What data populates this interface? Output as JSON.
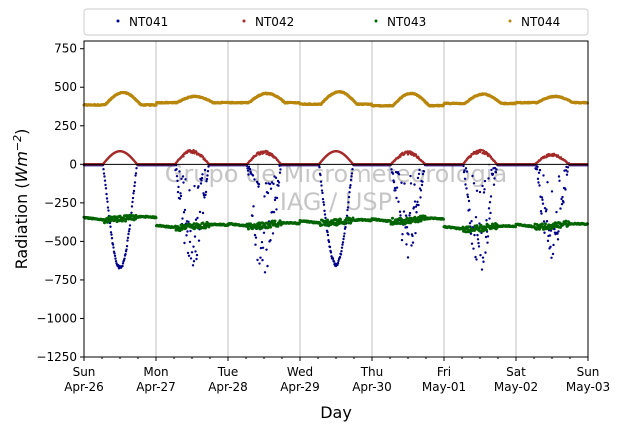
{
  "chart_data": {
    "type": "scatter",
    "title": "",
    "xlabel": "Day",
    "ylabel": "Radiation (Wm^-2)",
    "ylabel_parts": {
      "main": "Radiation (",
      "var": "Wm",
      "exp": "−2",
      "close": ")"
    },
    "ylim": [
      -1250,
      800
    ],
    "xlim_days": [
      0,
      7
    ],
    "yticks": [
      {
        "value": 750,
        "label": "750"
      },
      {
        "value": 500,
        "label": "500"
      },
      {
        "value": 250,
        "label": "250"
      },
      {
        "value": 0,
        "label": "0"
      },
      {
        "value": -250,
        "label": "−250"
      },
      {
        "value": -500,
        "label": "−500"
      },
      {
        "value": -750,
        "label": "−750"
      },
      {
        "value": -1000,
        "label": "−1000"
      },
      {
        "value": -1250,
        "label": "−1250"
      }
    ],
    "xticks": [
      {
        "day": 0,
        "line1": "Sun",
        "line2": "Apr-26"
      },
      {
        "day": 1,
        "line1": "Mon",
        "line2": "Apr-27"
      },
      {
        "day": 2,
        "line1": "Tue",
        "line2": "Apr-28"
      },
      {
        "day": 3,
        "line1": "Wed",
        "line2": "Apr-29"
      },
      {
        "day": 4,
        "line1": "Thu",
        "line2": "Apr-30"
      },
      {
        "day": 5,
        "line1": "Fri",
        "line2": "May-01"
      },
      {
        "day": 6,
        "line1": "Sat",
        "line2": "May-02"
      },
      {
        "day": 7,
        "line1": "Sun",
        "line2": "May-03"
      }
    ],
    "grid": "vertical",
    "legend_position": "top",
    "watermark": [
      "Grupo de Micrometeorologia",
      "IAG / USP"
    ],
    "series": [
      {
        "name": "NT041",
        "color": "#00008b",
        "baseline": -5,
        "peaks": [
          -670,
          -740,
          -800,
          -650,
          -600,
          -720,
          -630
        ]
      },
      {
        "name": "NT042",
        "color": "#a52a2a",
        "baseline": 0,
        "peaks": [
          85,
          95,
          90,
          85,
          85,
          95,
          70
        ]
      },
      {
        "name": "NT043",
        "color": "#006400",
        "daily_min": [
          -350,
          -390,
          -380,
          -370,
          -360,
          -400,
          -400
        ],
        "night_level": [
          -350,
          -400,
          -390,
          -370,
          -360,
          -410,
          -395
        ]
      },
      {
        "name": "NT044",
        "color": "#b8860b",
        "daily_max": [
          465,
          440,
          460,
          470,
          460,
          455,
          440
        ],
        "night_level": [
          385,
          400,
          400,
          390,
          380,
          395,
          400
        ]
      }
    ]
  }
}
